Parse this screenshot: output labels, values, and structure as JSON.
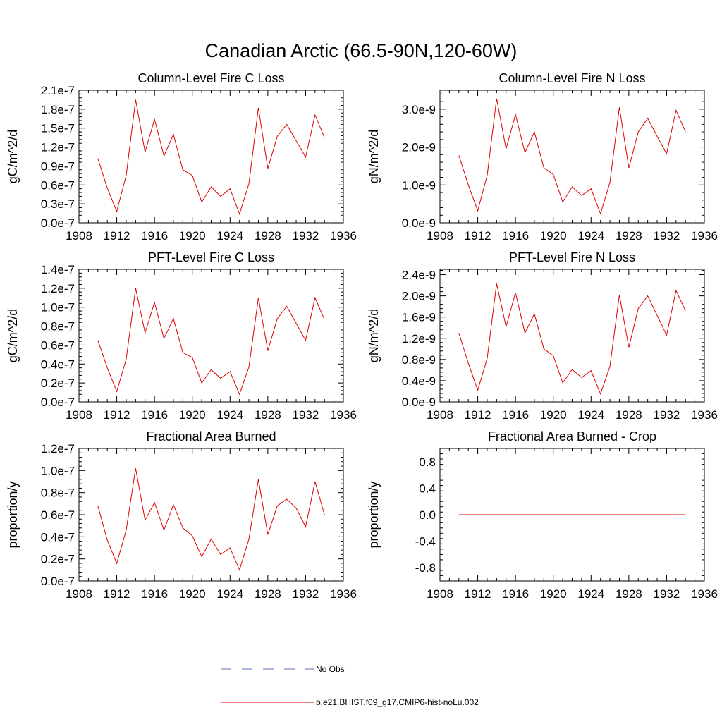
{
  "figure": {
    "title": "Canadian Arctic (66.5-90N,120-60W)"
  },
  "chart_data": [
    {
      "type": "line",
      "title": "Column-Level Fire C Loss",
      "xlabel": "",
      "ylabel": "gC/m^2/d",
      "xlim": [
        1908,
        1936
      ],
      "ylim": [
        0,
        2.1e-07
      ],
      "x_ticks": [
        1908,
        1912,
        1916,
        1920,
        1924,
        1928,
        1932,
        1936
      ],
      "x_tick_labels": [
        "1908",
        "1912",
        "1916",
        "1920",
        "1924",
        "1928",
        "1932",
        "1936"
      ],
      "y_ticks": [
        0,
        3e-08,
        6e-08,
        9e-08,
        1.2e-07,
        1.5e-07,
        1.8e-07,
        2.1e-07
      ],
      "y_tick_labels": [
        "0.0e-7",
        "0.3e-7",
        "0.6e-7",
        "0.9e-7",
        "1.2e-7",
        "1.5e-7",
        "1.8e-7",
        "2.1e-7"
      ],
      "x": [
        1910,
        1911,
        1912,
        1913,
        1914,
        1915,
        1916,
        1917,
        1918,
        1919,
        1920,
        1921,
        1922,
        1923,
        1924,
        1925,
        1926,
        1927,
        1928,
        1929,
        1930,
        1931,
        1932,
        1933,
        1934
      ],
      "series": [
        {
          "name": "b.e21.BHIST.f09_g17.CMIP6-hist-noLu.002",
          "color": "#e00000",
          "values": [
            1.02e-07,
            5.5e-08,
            1.8e-08,
            7.5e-08,
            1.95e-07,
            1.12e-07,
            1.64e-07,
            1.06e-07,
            1.4e-07,
            8.4e-08,
            7.5e-08,
            3.3e-08,
            5.7e-08,
            4.2e-08,
            5.4e-08,
            1.4e-08,
            6.2e-08,
            1.82e-07,
            8.6e-08,
            1.37e-07,
            1.56e-07,
            1.3e-07,
            1.04e-07,
            1.71e-07,
            1.35e-07
          ]
        }
      ]
    },
    {
      "type": "line",
      "title": "Column-Level Fire N Loss",
      "xlabel": "",
      "ylabel": "gN/m^2/d",
      "xlim": [
        1908,
        1936
      ],
      "ylim": [
        0,
        3.5e-09
      ],
      "x_ticks": [
        1908,
        1912,
        1916,
        1920,
        1924,
        1928,
        1932,
        1936
      ],
      "x_tick_labels": [
        "1908",
        "1912",
        "1916",
        "1920",
        "1924",
        "1928",
        "1932",
        "1936"
      ],
      "y_ticks": [
        0,
        1e-09,
        2e-09,
        3e-09
      ],
      "y_tick_labels": [
        "0.0e-9",
        "1.0e-9",
        "2.0e-9",
        "3.0e-9"
      ],
      "x": [
        1910,
        1911,
        1912,
        1913,
        1914,
        1915,
        1916,
        1917,
        1918,
        1919,
        1920,
        1921,
        1922,
        1923,
        1924,
        1925,
        1926,
        1927,
        1928,
        1929,
        1930,
        1931,
        1932,
        1933,
        1934
      ],
      "series": [
        {
          "name": "b.e21.BHIST.f09_g17.CMIP6-hist-noLu.002",
          "color": "#e00000",
          "values": [
            1.78e-09,
            1e-09,
            3.2e-10,
            1.25e-09,
            3.28e-09,
            1.95e-09,
            2.86e-09,
            1.85e-09,
            2.4e-09,
            1.45e-09,
            1.28e-09,
            5.5e-10,
            9.5e-10,
            7.2e-10,
            9e-10,
            2.4e-10,
            1.07e-09,
            3.05e-09,
            1.45e-09,
            2.4e-09,
            2.76e-09,
            2.28e-09,
            1.82e-09,
            2.97e-09,
            2.4e-09
          ]
        }
      ]
    },
    {
      "type": "line",
      "title": "PFT-Level Fire C Loss",
      "xlabel": "",
      "ylabel": "gC/m^2/d",
      "xlim": [
        1908,
        1936
      ],
      "ylim": [
        0,
        1.4e-07
      ],
      "x_ticks": [
        1908,
        1912,
        1916,
        1920,
        1924,
        1928,
        1932,
        1936
      ],
      "x_tick_labels": [
        "1908",
        "1912",
        "1916",
        "1920",
        "1924",
        "1928",
        "1932",
        "1936"
      ],
      "y_ticks": [
        0,
        2e-08,
        4e-08,
        6e-08,
        8e-08,
        1e-07,
        1.2e-07,
        1.4e-07
      ],
      "y_tick_labels": [
        "0.0e-7",
        "0.2e-7",
        "0.4e-7",
        "0.6e-7",
        "0.8e-7",
        "1.0e-7",
        "1.2e-7",
        "1.4e-7"
      ],
      "x": [
        1910,
        1911,
        1912,
        1913,
        1914,
        1915,
        1916,
        1917,
        1918,
        1919,
        1920,
        1921,
        1922,
        1923,
        1924,
        1925,
        1926,
        1927,
        1928,
        1929,
        1930,
        1931,
        1932,
        1933,
        1934
      ],
      "series": [
        {
          "name": "b.e21.BHIST.f09_g17.CMIP6-hist-noLu.002",
          "color": "#e00000",
          "values": [
            6.5e-08,
            3.6e-08,
            1.1e-08,
            4.5e-08,
            1.2e-07,
            7.3e-08,
            1.05e-07,
            6.7e-08,
            8.8e-08,
            5.2e-08,
            4.7e-08,
            2e-08,
            3.4e-08,
            2.5e-08,
            3.2e-08,
            8e-09,
            3.7e-08,
            1.1e-07,
            5.4e-08,
            8.8e-08,
            1.01e-07,
            8.3e-08,
            6.5e-08,
            1.1e-07,
            8.7e-08
          ]
        }
      ]
    },
    {
      "type": "line",
      "title": "PFT-Level Fire N Loss",
      "xlabel": "",
      "ylabel": "gN/m^2/d",
      "xlim": [
        1908,
        1936
      ],
      "ylim": [
        0,
        2.5e-09
      ],
      "x_ticks": [
        1908,
        1912,
        1916,
        1920,
        1924,
        1928,
        1932,
        1936
      ],
      "x_tick_labels": [
        "1908",
        "1912",
        "1916",
        "1920",
        "1924",
        "1928",
        "1932",
        "1936"
      ],
      "y_ticks": [
        0,
        4e-10,
        8e-10,
        1.2e-09,
        1.6e-09,
        2e-09,
        2.4e-09
      ],
      "y_tick_labels": [
        "0.0e-9",
        "0.4e-9",
        "0.8e-9",
        "1.2e-9",
        "1.6e-9",
        "2.0e-9",
        "2.4e-9"
      ],
      "x": [
        1910,
        1911,
        1912,
        1913,
        1914,
        1915,
        1916,
        1917,
        1918,
        1919,
        1920,
        1921,
        1922,
        1923,
        1924,
        1925,
        1926,
        1927,
        1928,
        1929,
        1930,
        1931,
        1932,
        1933,
        1934
      ],
      "series": [
        {
          "name": "b.e21.BHIST.f09_g17.CMIP6-hist-noLu.002",
          "color": "#e00000",
          "values": [
            1.3e-09,
            7.3e-10,
            2.2e-10,
            8.2e-10,
            2.23e-09,
            1.42e-09,
            2.06e-09,
            1.3e-09,
            1.66e-09,
            1e-09,
            8.7e-10,
            3.6e-10,
            6.1e-10,
            4.6e-10,
            5.9e-10,
            1.5e-10,
            6.7e-10,
            2.02e-09,
            1.03e-09,
            1.76e-09,
            2e-09,
            1.63e-09,
            1.26e-09,
            2.1e-09,
            1.72e-09
          ]
        }
      ]
    },
    {
      "type": "line",
      "title": "Fractional Area Burned",
      "xlabel": "",
      "ylabel": "proportion/y",
      "xlim": [
        1908,
        1936
      ],
      "ylim": [
        0,
        1.2e-07
      ],
      "x_ticks": [
        1908,
        1912,
        1916,
        1920,
        1924,
        1928,
        1932,
        1936
      ],
      "x_tick_labels": [
        "1908",
        "1912",
        "1916",
        "1920",
        "1924",
        "1928",
        "1932",
        "1936"
      ],
      "y_ticks": [
        0,
        2e-08,
        4e-08,
        6e-08,
        8e-08,
        1e-07,
        1.2e-07
      ],
      "y_tick_labels": [
        "0.0e-7",
        "0.2e-7",
        "0.4e-7",
        "0.6e-7",
        "0.8e-7",
        "1.0e-7",
        "1.2e-7"
      ],
      "x": [
        1910,
        1911,
        1912,
        1913,
        1914,
        1915,
        1916,
        1917,
        1918,
        1919,
        1920,
        1921,
        1922,
        1923,
        1924,
        1925,
        1926,
        1927,
        1928,
        1929,
        1930,
        1931,
        1932,
        1933,
        1934
      ],
      "series": [
        {
          "name": "b.e21.BHIST.f09_g17.CMIP6-hist-noLu.002",
          "color": "#e00000",
          "values": [
            6.8e-08,
            3.7e-08,
            1.6e-08,
            4.6e-08,
            1.02e-07,
            5.5e-08,
            7.1e-08,
            4.6e-08,
            6.9e-08,
            4.8e-08,
            4.1e-08,
            2.2e-08,
            3.8e-08,
            2.4e-08,
            3e-08,
            1e-08,
            3.8e-08,
            9.2e-08,
            4.2e-08,
            6.8e-08,
            7.4e-08,
            6.6e-08,
            4.9e-08,
            9e-08,
            6e-08
          ]
        }
      ]
    },
    {
      "type": "line",
      "title": "Fractional Area Burned - Crop",
      "xlabel": "",
      "ylabel": "proportion/y",
      "xlim": [
        1908,
        1936
      ],
      "ylim": [
        -1.0,
        1.0
      ],
      "x_ticks": [
        1908,
        1912,
        1916,
        1920,
        1924,
        1928,
        1932,
        1936
      ],
      "x_tick_labels": [
        "1908",
        "1912",
        "1916",
        "1920",
        "1924",
        "1928",
        "1932",
        "1936"
      ],
      "y_ticks": [
        -0.8,
        -0.4,
        0.0,
        0.4,
        0.8
      ],
      "y_tick_labels": [
        "-0.8",
        "-0.4",
        "0.0",
        "0.4",
        "0.8"
      ],
      "x": [
        1910,
        1934
      ],
      "series": [
        {
          "name": "b.e21.BHIST.f09_g17.CMIP6-hist-noLu.002",
          "color": "#e00000",
          "values": [
            0.0,
            0.0
          ]
        }
      ]
    }
  ],
  "legend": {
    "items": [
      {
        "label": "No Obs",
        "color": "#5a6eb4",
        "style": "dashed"
      },
      {
        "label": "b.e21.BHIST.f09_g17.CMIP6-hist-noLu.002",
        "color": "#e00000",
        "style": "solid"
      }
    ]
  }
}
